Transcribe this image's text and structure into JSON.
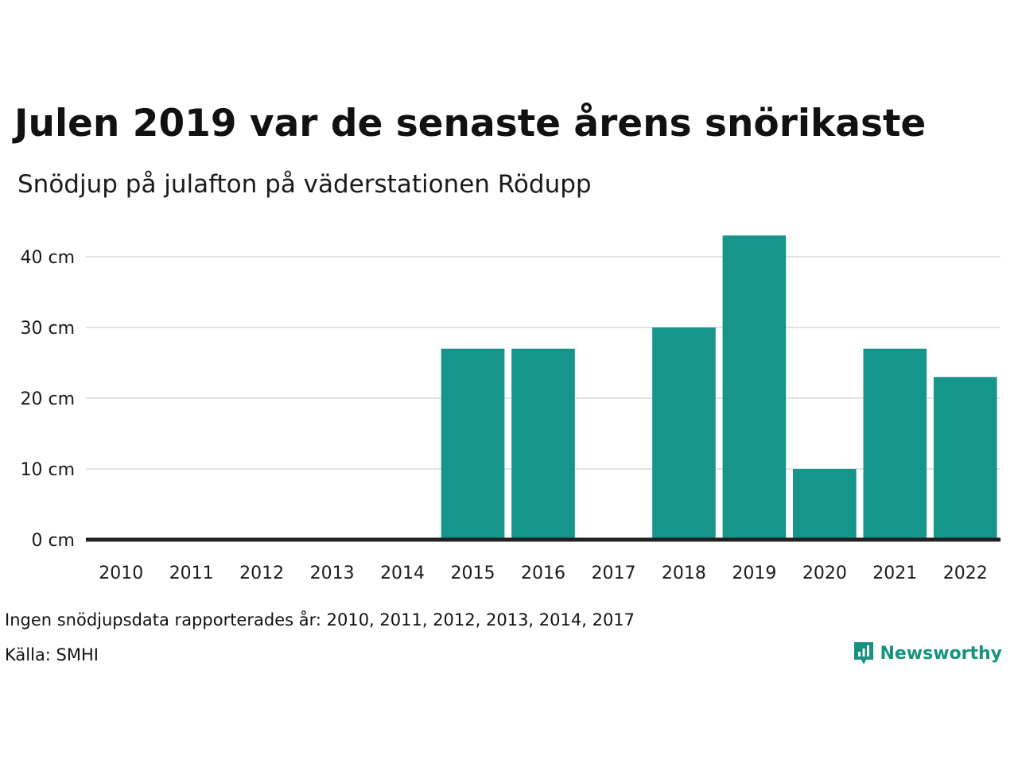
{
  "title": "Julen 2019 var de senaste årens snörikaste",
  "subtitle": "Snödjup på julafton på väderstationen Rödupp",
  "footnote": "Ingen snödjupsdata rapporterades år: 2010, 2011, 2012, 2013, 2014, 2017",
  "source": "Källa: SMHI",
  "brand": {
    "name": "Newsworthy",
    "icon": "newsworthy-logo-icon",
    "color": "#16927f"
  },
  "colors": {
    "bar": "#16958a",
    "gridline": "#e3e3e3",
    "baseline": "#222222"
  },
  "chart_data": {
    "type": "bar",
    "title": "Julen 2019 var de senaste årens snörikaste",
    "subtitle": "Snödjup på julafton på väderstationen Rödupp",
    "xlabel": "",
    "ylabel": "",
    "categories": [
      "2010",
      "2011",
      "2012",
      "2013",
      "2014",
      "2015",
      "2016",
      "2017",
      "2018",
      "2019",
      "2020",
      "2021",
      "2022"
    ],
    "values": [
      null,
      null,
      null,
      null,
      null,
      27,
      27,
      null,
      30,
      43,
      10,
      27,
      23
    ],
    "ylim": [
      0,
      43
    ],
    "yticks": [
      0,
      10,
      20,
      30,
      40
    ],
    "ytick_labels": [
      "0 cm",
      "10 cm",
      "20 cm",
      "30 cm",
      "40 cm"
    ],
    "unit": "cm",
    "grid": true,
    "legend": "none"
  }
}
